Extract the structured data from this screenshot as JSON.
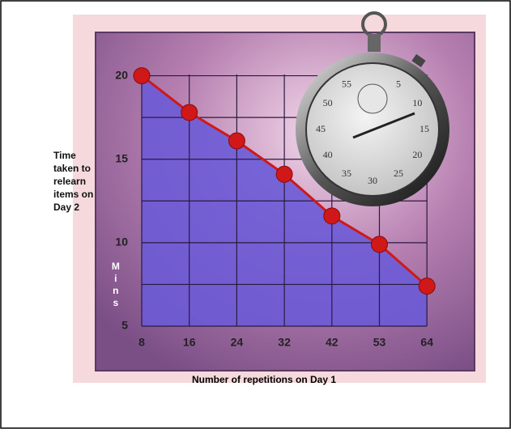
{
  "chart_data": {
    "type": "area-line",
    "x_label": "Number of repetitions on Day 1",
    "y_label": [
      "Time",
      "taken to",
      "relearn",
      "items on",
      "Day 2"
    ],
    "unit_label": "Mins",
    "categories": [
      "8",
      "16",
      "24",
      "32",
      "42",
      "53",
      "64"
    ],
    "values": [
      20,
      17.8,
      16.1,
      14.1,
      11.6,
      9.9,
      7.4
    ],
    "color": "#d01818",
    "fill": "#6b5bd6",
    "ylim": [
      5,
      22.5
    ],
    "yticks": [
      5,
      10,
      15,
      20
    ],
    "ygrid": [
      5,
      7.5,
      10,
      12.5,
      15,
      17.5,
      20
    ],
    "grid": true,
    "dial_labels": [
      5,
      10,
      15,
      20,
      25,
      30,
      35,
      40,
      45,
      50,
      55
    ]
  }
}
